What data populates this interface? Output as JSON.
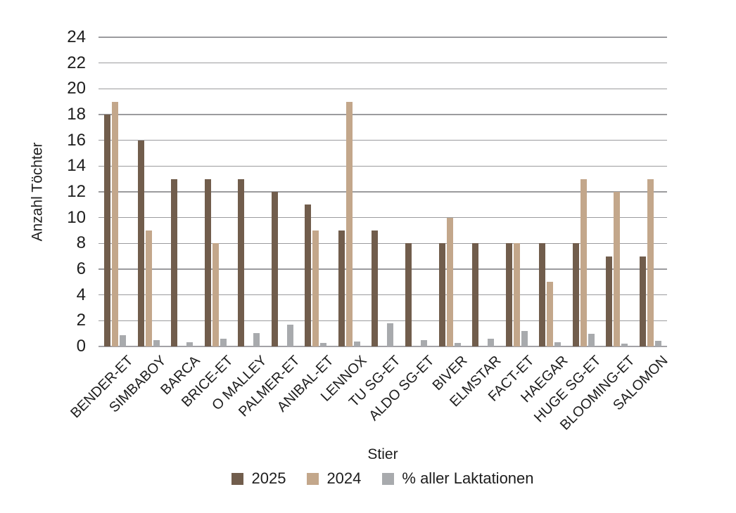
{
  "chart_data": {
    "type": "bar",
    "title": "",
    "xlabel": "Stier",
    "ylabel": "Anzahl Töchter",
    "ylim": [
      0,
      24
    ],
    "ytick_step": 2,
    "grid": "horizontal",
    "legend_position": "bottom",
    "categories": [
      "BENDER-ET",
      "SIMBABOY",
      "BARCA",
      "BRICE-ET",
      "O MALLEY",
      "PALMER-ET",
      "ANIBAL-ET",
      "LENNOX",
      "TU SG-ET",
      "ALDO SG-ET",
      "BIVER",
      "ELMSTAR",
      "FACT-ET",
      "HAEGAR",
      "HUGE SG-ET",
      "BLOOMING-ET",
      "SALOMON"
    ],
    "series": [
      {
        "name": "2025",
        "color": "#715D4C",
        "values": [
          18,
          16,
          13,
          13,
          13,
          12,
          11,
          9,
          9,
          8,
          8,
          8,
          8,
          8,
          8,
          7,
          7
        ]
      },
      {
        "name": "2024",
        "color": "#C3A78B",
        "values": [
          19,
          9,
          null,
          8,
          null,
          null,
          9,
          19,
          null,
          null,
          10,
          null,
          8,
          5,
          13,
          12,
          13
        ]
      },
      {
        "name": "% aller Laktationen",
        "color": "#A8AAAD",
        "values": [
          0.9,
          0.5,
          0.35,
          0.6,
          1.05,
          1.7,
          0.25,
          0.4,
          1.8,
          0.5,
          0.25,
          0.6,
          1.2,
          0.35,
          1.0,
          0.2,
          0.45
        ]
      }
    ]
  },
  "colors": {
    "text": "#1d1d1d",
    "gridline": "#9B9B9E",
    "background": "#FFFFFF"
  }
}
